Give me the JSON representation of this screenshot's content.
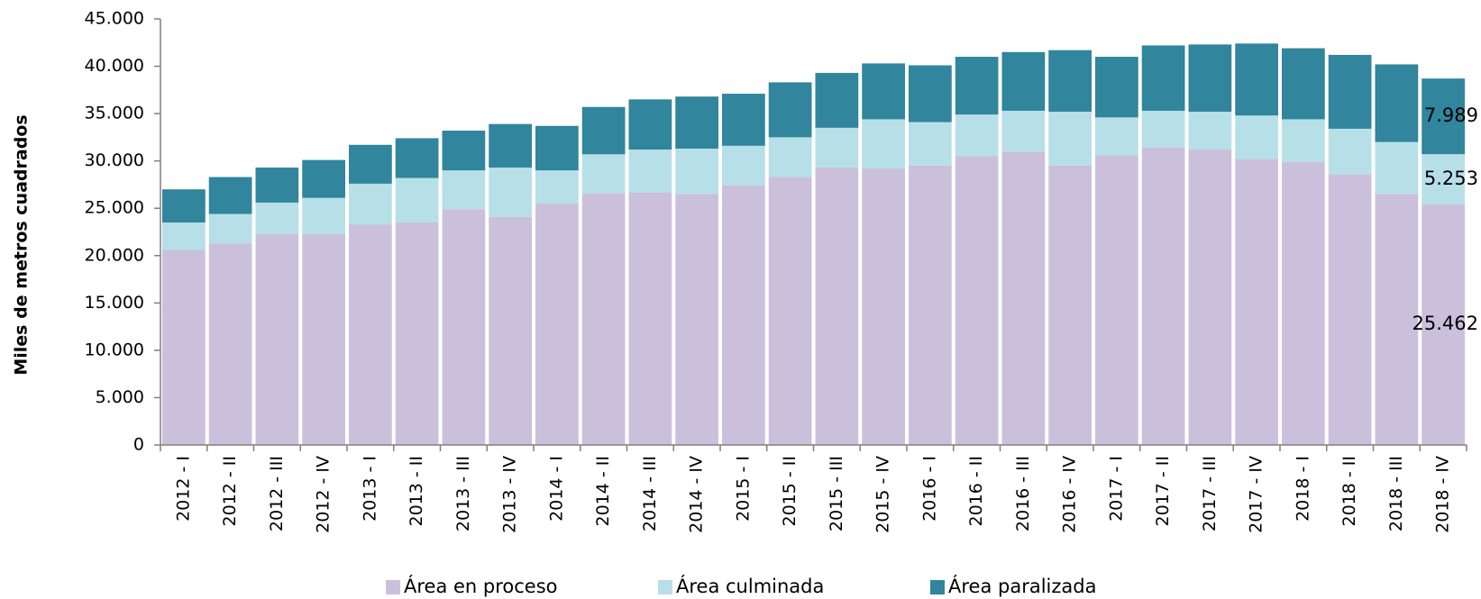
{
  "chart_data": {
    "type": "stacked-bar",
    "y_label": "Miles de metros cuadrados",
    "categories": [
      "2012 - I",
      "2012 - II",
      "2012 - III",
      "2012 - IV",
      "2013 - I",
      "2013 - II",
      "2013 - III",
      "2013 - IV",
      "2014 - I",
      "2014 - II",
      "2014 - III",
      "2014 - IV",
      "2015 - I",
      "2015 - II",
      "2015 - III",
      "2015 - IV",
      "2016 - I",
      "2016 - II",
      "2016 - III",
      "2016 - IV",
      "2017 - I",
      "2017 - II",
      "2017 - III",
      "2017 - IV",
      "2018 - I",
      "2018 - II",
      "2018 - III",
      "2018 - IV"
    ],
    "series": [
      {
        "name": "Área en proceso",
        "color": "#cbc0dc",
        "values": [
          20600,
          21300,
          22300,
          22300,
          23300,
          23500,
          24900,
          24100,
          25500,
          26600,
          26700,
          26500,
          27400,
          28300,
          29300,
          29200,
          29500,
          30500,
          31000,
          29500,
          30600,
          31400,
          31200,
          30200,
          29900,
          28600,
          26500,
          25462
        ],
        "value_labels": [
          null,
          null,
          null,
          null,
          null,
          null,
          null,
          null,
          null,
          null,
          null,
          null,
          null,
          null,
          null,
          null,
          null,
          null,
          null,
          null,
          null,
          null,
          null,
          null,
          null,
          null,
          null,
          "25.462"
        ]
      },
      {
        "name": "Área culminada",
        "color": "#b7dfe8",
        "values": [
          2900,
          3100,
          3300,
          3800,
          4300,
          4700,
          4100,
          5200,
          3500,
          4100,
          4500,
          4800,
          4200,
          4200,
          4200,
          5200,
          4600,
          4400,
          4300,
          5700,
          4000,
          3900,
          4000,
          4600,
          4500,
          4800,
          5500,
          5253
        ],
        "value_labels": [
          null,
          null,
          null,
          null,
          null,
          null,
          null,
          null,
          null,
          null,
          null,
          null,
          null,
          null,
          null,
          null,
          null,
          null,
          null,
          null,
          null,
          null,
          null,
          null,
          null,
          null,
          null,
          "5.253"
        ]
      },
      {
        "name": "Área paralizada",
        "color": "#31859c",
        "values": [
          3500,
          3900,
          3700,
          4000,
          4100,
          4200,
          4200,
          4600,
          4700,
          5000,
          5300,
          5500,
          5500,
          5800,
          5800,
          5900,
          6000,
          6100,
          6200,
          6500,
          6400,
          6900,
          7100,
          7600,
          7500,
          7800,
          8200,
          7989
        ],
        "value_labels": [
          null,
          null,
          null,
          null,
          null,
          null,
          null,
          null,
          null,
          null,
          null,
          null,
          null,
          null,
          null,
          null,
          null,
          null,
          null,
          null,
          null,
          null,
          null,
          null,
          null,
          null,
          null,
          "7.989"
        ]
      }
    ],
    "ylim": [
      0,
      45000
    ],
    "yticks": [
      0,
      {
        "value": 5000,
        "label": "5.000"
      },
      {
        "value": 10000,
        "label": "10.000"
      },
      {
        "value": 15000,
        "label": "15.000"
      },
      {
        "value": 20000,
        "label": "20.000"
      },
      {
        "value": 25000,
        "label": "25.000"
      },
      {
        "value": 30000,
        "label": "30.000"
      },
      {
        "value": 35000,
        "label": "35.000"
      },
      {
        "value": 40000,
        "label": "40.000"
      },
      {
        "value": 45000,
        "label": "45.000"
      }
    ],
    "legend": "bottom"
  }
}
